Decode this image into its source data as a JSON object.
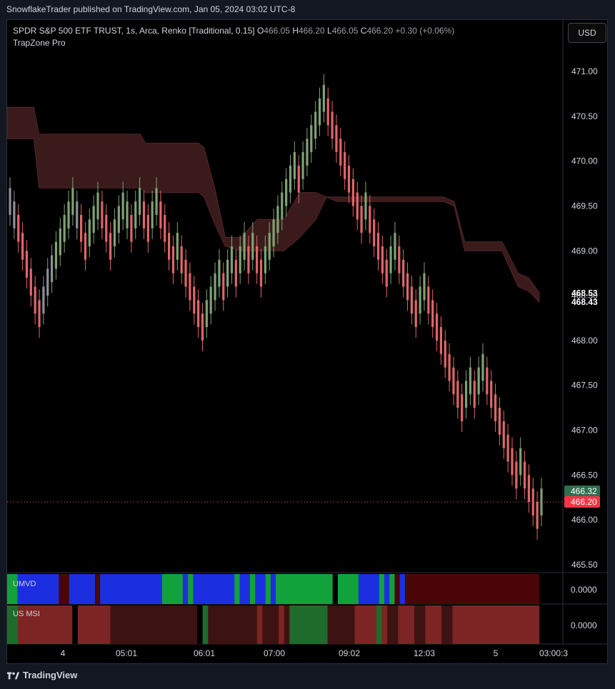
{
  "header": {
    "published": "SnowflakeTrader published on TradingView.com, Jan 05, 2024 03:02 UTC-8"
  },
  "legend": {
    "symbol": "SPDR S&P 500 ETF TRUST, 1s, Arca, Renko [Traditional, 0.15]",
    "open_label": "O",
    "open": "466.05",
    "high_label": "H",
    "high": "466.20",
    "low_label": "L",
    "low": "466.05",
    "close_label": "C",
    "close": "466.20",
    "change": "+0.30 (+0.06%)",
    "indicator": "TrapZone Pro"
  },
  "currency_button": "USD",
  "panes": {
    "umvd": "UMVD",
    "usmsi": "US MSI",
    "umvd_value": "0.0000",
    "usmsi_value": "0.0000"
  },
  "footer": {
    "brand": "TradingView"
  },
  "colors": {
    "bull": "#7fa274",
    "bear": "#e0666a",
    "neutral": "#8e9099",
    "zone": "#3a1a1a",
    "zone_edge": "#55262a",
    "axis_text": "#d1d4dc",
    "grid": "#000000",
    "umvd_blue": "#1c2fe0",
    "umvd_green": "#12a23c",
    "umvd_red": "#4a0606",
    "msi_red": "#7d2424",
    "msi_dark": "#3d1212",
    "msi_green": "#1f6b2b"
  },
  "chart_data": {
    "type": "candlestick-renko",
    "title": "SPDR S&P 500 ETF TRUST, 1s, Arca, Renko [Traditional, 0.15]",
    "price_axis": {
      "ticks": [
        "471.00",
        "470.50",
        "470.00",
        "469.50",
        "469.00",
        "468.50",
        "468.00",
        "467.50",
        "467.00",
        "466.50",
        "466.00",
        "465.50"
      ],
      "tick_values": [
        471.0,
        470.5,
        470.0,
        469.5,
        469.0,
        468.5,
        468.0,
        467.5,
        467.0,
        466.5,
        466.0,
        465.5
      ],
      "ylim": [
        465.4,
        471.6
      ]
    },
    "price_labels": [
      {
        "text": "468.53",
        "value": 468.53,
        "style": "plain"
      },
      {
        "text": "468.43",
        "value": 468.43,
        "style": "plain"
      },
      {
        "text": "466.32",
        "value": 466.32,
        "style": "green"
      },
      {
        "text": "466.20",
        "value": 466.2,
        "style": "red"
      }
    ],
    "current_price": 466.2,
    "time_axis": {
      "labels": [
        "4",
        "05:01",
        "06:01",
        "07:00",
        "09:02",
        "12:03",
        "5",
        "03:00:3"
      ]
    },
    "bricks": [
      [
        469.7,
        469.4,
        "b"
      ],
      [
        469.55,
        469.25,
        "b"
      ],
      [
        469.4,
        469.1,
        "r"
      ],
      [
        469.2,
        468.9,
        "r"
      ],
      [
        469.0,
        468.7,
        "r"
      ],
      [
        468.8,
        468.5,
        "r"
      ],
      [
        468.6,
        468.3,
        "r"
      ],
      [
        468.45,
        468.15,
        "r"
      ],
      [
        468.6,
        468.3,
        "b"
      ],
      [
        468.8,
        468.5,
        "b"
      ],
      [
        468.95,
        468.65,
        "b"
      ],
      [
        469.1,
        468.8,
        "g"
      ],
      [
        469.25,
        468.95,
        "g"
      ],
      [
        469.4,
        469.1,
        "g"
      ],
      [
        469.55,
        469.25,
        "g"
      ],
      [
        469.7,
        469.4,
        "g"
      ],
      [
        469.55,
        469.25,
        "b"
      ],
      [
        469.4,
        469.1,
        "r"
      ],
      [
        469.2,
        468.9,
        "r"
      ],
      [
        469.35,
        469.05,
        "g"
      ],
      [
        469.5,
        469.2,
        "g"
      ],
      [
        469.65,
        469.35,
        "g"
      ],
      [
        469.55,
        469.25,
        "r"
      ],
      [
        469.4,
        469.1,
        "r"
      ],
      [
        469.2,
        468.9,
        "r"
      ],
      [
        469.35,
        469.05,
        "g"
      ],
      [
        469.5,
        469.2,
        "g"
      ],
      [
        469.65,
        469.35,
        "g"
      ],
      [
        469.55,
        469.25,
        "g"
      ],
      [
        469.4,
        469.1,
        "r"
      ],
      [
        469.55,
        469.25,
        "g"
      ],
      [
        469.7,
        469.4,
        "g"
      ],
      [
        469.55,
        469.25,
        "r"
      ],
      [
        469.4,
        469.1,
        "r"
      ],
      [
        469.55,
        469.25,
        "g"
      ],
      [
        469.7,
        469.4,
        "g"
      ],
      [
        469.55,
        469.25,
        "r"
      ],
      [
        469.4,
        469.1,
        "r"
      ],
      [
        469.2,
        468.9,
        "r"
      ],
      [
        469.05,
        468.75,
        "r"
      ],
      [
        469.2,
        468.9,
        "g"
      ],
      [
        469.05,
        468.75,
        "r"
      ],
      [
        468.9,
        468.6,
        "r"
      ],
      [
        468.75,
        468.45,
        "r"
      ],
      [
        468.6,
        468.3,
        "r"
      ],
      [
        468.45,
        468.15,
        "r"
      ],
      [
        468.3,
        468.0,
        "r"
      ],
      [
        468.45,
        468.15,
        "g"
      ],
      [
        468.6,
        468.3,
        "g"
      ],
      [
        468.75,
        468.45,
        "g"
      ],
      [
        468.9,
        468.6,
        "g"
      ],
      [
        468.75,
        468.45,
        "r"
      ],
      [
        468.9,
        468.6,
        "g"
      ],
      [
        469.05,
        468.75,
        "g"
      ],
      [
        468.9,
        468.6,
        "r"
      ],
      [
        469.05,
        468.75,
        "g"
      ],
      [
        469.2,
        468.9,
        "g"
      ],
      [
        469.05,
        468.75,
        "r"
      ],
      [
        469.2,
        468.9,
        "g"
      ],
      [
        469.05,
        468.75,
        "r"
      ],
      [
        468.9,
        468.6,
        "r"
      ],
      [
        469.05,
        468.75,
        "g"
      ],
      [
        469.2,
        468.9,
        "g"
      ],
      [
        469.35,
        469.05,
        "g"
      ],
      [
        469.5,
        469.2,
        "g"
      ],
      [
        469.65,
        469.35,
        "g"
      ],
      [
        469.8,
        469.5,
        "g"
      ],
      [
        469.95,
        469.65,
        "g"
      ],
      [
        470.1,
        469.8,
        "g"
      ],
      [
        469.95,
        469.65,
        "r"
      ],
      [
        470.1,
        469.8,
        "g"
      ],
      [
        470.25,
        469.95,
        "g"
      ],
      [
        470.4,
        470.1,
        "g"
      ],
      [
        470.55,
        470.25,
        "g"
      ],
      [
        470.7,
        470.4,
        "g"
      ],
      [
        470.85,
        470.55,
        "g"
      ],
      [
        470.7,
        470.4,
        "r"
      ],
      [
        470.55,
        470.25,
        "r"
      ],
      [
        470.4,
        470.1,
        "r"
      ],
      [
        470.25,
        469.95,
        "r"
      ],
      [
        470.1,
        469.8,
        "r"
      ],
      [
        469.95,
        469.65,
        "r"
      ],
      [
        469.8,
        469.5,
        "r"
      ],
      [
        469.65,
        469.35,
        "r"
      ],
      [
        469.5,
        469.2,
        "r"
      ],
      [
        469.65,
        469.35,
        "g"
      ],
      [
        469.5,
        469.2,
        "r"
      ],
      [
        469.35,
        469.05,
        "r"
      ],
      [
        469.2,
        468.9,
        "r"
      ],
      [
        469.05,
        468.75,
        "r"
      ],
      [
        468.9,
        468.6,
        "r"
      ],
      [
        469.05,
        468.75,
        "g"
      ],
      [
        469.2,
        468.9,
        "g"
      ],
      [
        469.05,
        468.75,
        "r"
      ],
      [
        468.9,
        468.6,
        "r"
      ],
      [
        468.75,
        468.45,
        "r"
      ],
      [
        468.6,
        468.3,
        "r"
      ],
      [
        468.45,
        468.15,
        "r"
      ],
      [
        468.6,
        468.3,
        "g"
      ],
      [
        468.75,
        468.45,
        "g"
      ],
      [
        468.6,
        468.3,
        "r"
      ],
      [
        468.45,
        468.15,
        "r"
      ],
      [
        468.3,
        468.0,
        "r"
      ],
      [
        468.15,
        467.85,
        "r"
      ],
      [
        468.0,
        467.7,
        "r"
      ],
      [
        467.85,
        467.55,
        "r"
      ],
      [
        467.7,
        467.4,
        "r"
      ],
      [
        467.55,
        467.25,
        "r"
      ],
      [
        467.4,
        467.1,
        "r"
      ],
      [
        467.55,
        467.25,
        "g"
      ],
      [
        467.7,
        467.4,
        "g"
      ],
      [
        467.55,
        467.25,
        "r"
      ],
      [
        467.7,
        467.4,
        "g"
      ],
      [
        467.85,
        467.55,
        "g"
      ],
      [
        467.7,
        467.4,
        "r"
      ],
      [
        467.55,
        467.25,
        "r"
      ],
      [
        467.4,
        467.1,
        "r"
      ],
      [
        467.25,
        466.95,
        "r"
      ],
      [
        467.1,
        466.8,
        "r"
      ],
      [
        466.95,
        466.65,
        "r"
      ],
      [
        466.8,
        466.5,
        "r"
      ],
      [
        466.65,
        466.35,
        "r"
      ],
      [
        466.8,
        466.5,
        "g"
      ],
      [
        466.65,
        466.35,
        "r"
      ],
      [
        466.5,
        466.2,
        "r"
      ],
      [
        466.35,
        466.05,
        "r"
      ],
      [
        466.2,
        465.9,
        "r"
      ],
      [
        466.35,
        466.05,
        "g"
      ]
    ],
    "zone_top": [
      [
        0,
        470.6
      ],
      [
        0.05,
        470.6
      ],
      [
        0.06,
        470.3
      ],
      [
        0.25,
        470.3
      ],
      [
        0.26,
        470.2
      ],
      [
        0.36,
        470.2
      ],
      [
        0.37,
        470.15
      ],
      [
        0.39,
        469.7
      ],
      [
        0.41,
        469.15
      ],
      [
        0.44,
        469.15
      ],
      [
        0.47,
        469.35
      ],
      [
        0.52,
        469.35
      ],
      [
        0.55,
        469.65
      ],
      [
        0.58,
        469.65
      ],
      [
        0.6,
        469.6
      ],
      [
        0.62,
        469.6
      ],
      [
        0.68,
        469.6
      ],
      [
        0.82,
        469.6
      ],
      [
        0.84,
        469.55
      ],
      [
        0.86,
        469.1
      ],
      [
        0.93,
        469.1
      ],
      [
        0.96,
        468.75
      ],
      [
        0.98,
        468.7
      ],
      [
        1.0,
        468.53
      ]
    ],
    "zone_bottom": [
      [
        0,
        470.25
      ],
      [
        0.05,
        470.25
      ],
      [
        0.06,
        469.7
      ],
      [
        0.25,
        469.7
      ],
      [
        0.26,
        469.65
      ],
      [
        0.36,
        469.65
      ],
      [
        0.37,
        469.6
      ],
      [
        0.39,
        469.3
      ],
      [
        0.41,
        469.05
      ],
      [
        0.44,
        469.0
      ],
      [
        0.47,
        469.0
      ],
      [
        0.52,
        469.0
      ],
      [
        0.55,
        469.15
      ],
      [
        0.58,
        469.35
      ],
      [
        0.6,
        469.6
      ],
      [
        0.62,
        469.55
      ],
      [
        0.68,
        469.55
      ],
      [
        0.82,
        469.55
      ],
      [
        0.84,
        469.5
      ],
      [
        0.86,
        469.0
      ],
      [
        0.93,
        469.0
      ],
      [
        0.96,
        468.6
      ],
      [
        0.98,
        468.55
      ],
      [
        1.0,
        468.43
      ]
    ],
    "umvd_segments": [
      [
        "#12a23c",
        2
      ],
      [
        "#1c2fe0",
        8
      ],
      [
        "#4a0606",
        2
      ],
      [
        "#1c2fe0",
        5
      ],
      [
        "#4a0606",
        1
      ],
      [
        "#1c2fe0",
        12
      ],
      [
        "#12a23c",
        4
      ],
      [
        "#1c2fe0",
        1
      ],
      [
        "#12a23c",
        1
      ],
      [
        "#1c2fe0",
        8
      ],
      [
        "#12a23c",
        1
      ],
      [
        "#1c2fe0",
        2
      ],
      [
        "#12a23c",
        1
      ],
      [
        "#1c2fe0",
        2
      ],
      [
        "#12a23c",
        1
      ],
      [
        "#1c2fe0",
        1
      ],
      [
        "#12a23c",
        11
      ],
      [
        "#000000",
        1
      ],
      [
        "#12a23c",
        4
      ],
      [
        "#1c2fe0",
        4
      ],
      [
        "#12a23c",
        1
      ],
      [
        "#1c2fe0",
        1
      ],
      [
        "#12a23c",
        1
      ],
      [
        "#4a0606",
        1
      ],
      [
        "#1c2fe0",
        1
      ],
      [
        "#4a0606",
        26
      ]
    ],
    "msi_segments": [
      [
        "#1f6b2b",
        2
      ],
      [
        "#7d2424",
        10
      ],
      [
        "#000000",
        1
      ],
      [
        "#7d2424",
        6
      ],
      [
        "#3d1212",
        16
      ],
      [
        "#000000",
        1
      ],
      [
        "#1f6b2b",
        1
      ],
      [
        "#3d1212",
        9
      ],
      [
        "#7d2424",
        1
      ],
      [
        "#3d1212",
        3
      ],
      [
        "#7d2424",
        1
      ],
      [
        "#3d1212",
        1
      ],
      [
        "#1f6b2b",
        7
      ],
      [
        "#3d1212",
        5
      ],
      [
        "#7d2424",
        4
      ],
      [
        "#1f6b2b",
        1
      ],
      [
        "#7d2424",
        1
      ],
      [
        "#3d1212",
        2
      ],
      [
        "#7d2424",
        3
      ],
      [
        "#3d1212",
        2
      ],
      [
        "#7d2424",
        3
      ],
      [
        "#3d1212",
        2
      ],
      [
        "#7d2424",
        8
      ],
      [
        "#7d2424",
        8
      ]
    ]
  }
}
